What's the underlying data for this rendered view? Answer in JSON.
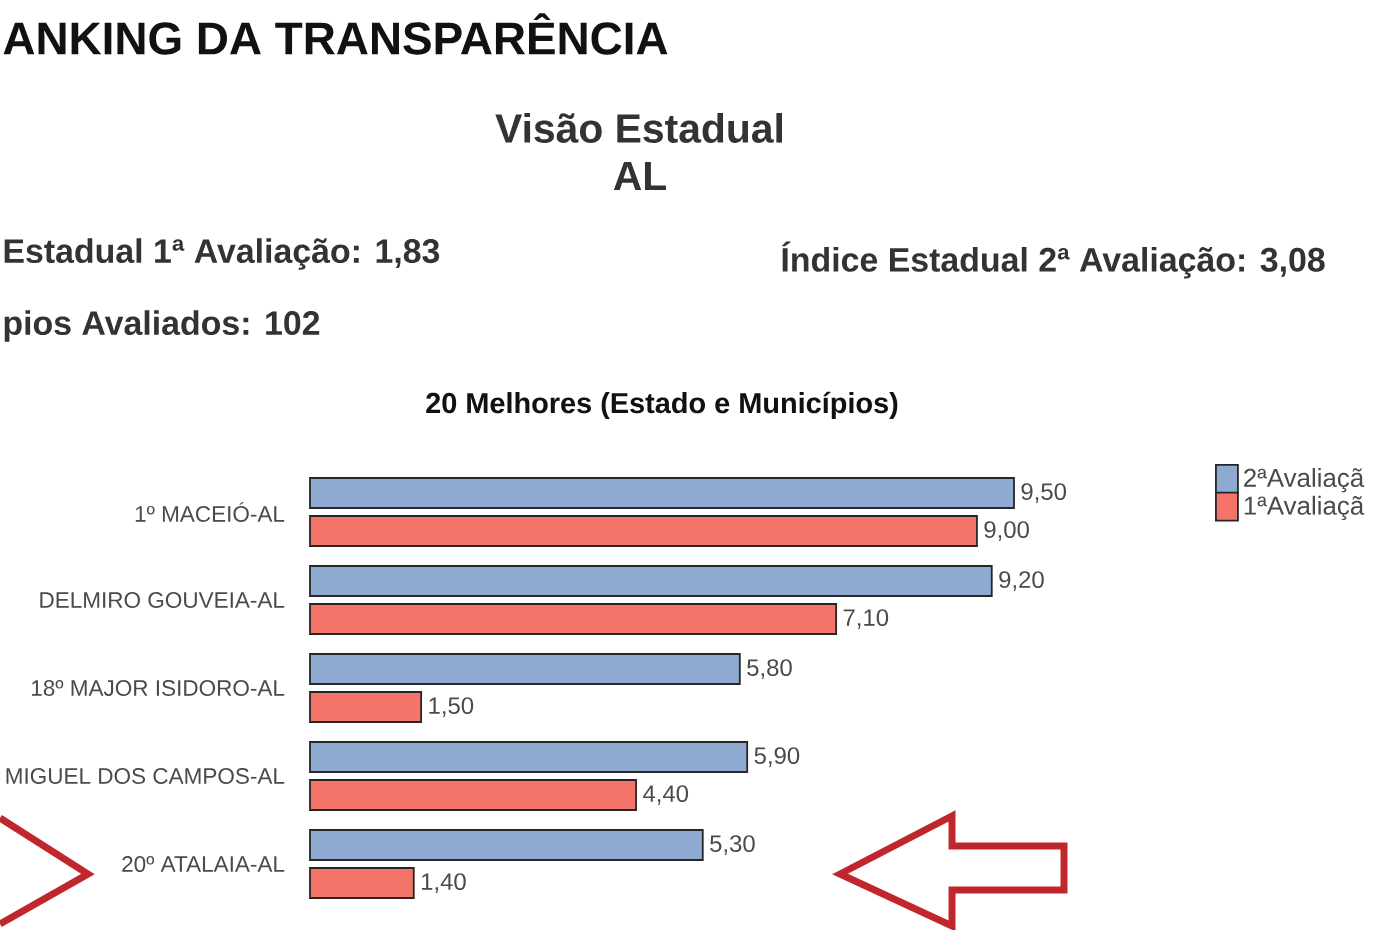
{
  "chart_data": {
    "type": "bar",
    "orientation": "horizontal",
    "title": "20 Melhores (Estado e Municípios)",
    "annotations": [
      "ANKING DA TRANSPARÊNCIA",
      "Visão Estadual",
      "AL",
      "Estadual 1ª Avaliação: 1,83",
      "Índice Estadual 2ª Avaliação: 3,08",
      "pios Avaliados: 102"
    ],
    "categories": [
      "1º MACEIÓ-AL",
      "DELMIRO GOUVEIA-AL",
      "18º MAJOR ISIDORO-AL",
      "MIGUEL DOS CAMPOS-AL",
      "20º ATALAIA-AL"
    ],
    "series": [
      {
        "name": "2ªAvaliaçã",
        "color": "#8eaad0",
        "values": [
          9.5,
          9.2,
          5.8,
          5.9,
          5.3
        ],
        "value_labels": [
          "9,50",
          "9,20",
          "5,80",
          "5,90",
          "5,30"
        ]
      },
      {
        "name": "1ªAvaliaçã",
        "color": "#f4746a",
        "values": [
          9.0,
          7.1,
          1.5,
          4.4,
          1.4
        ],
        "value_labels": [
          "9,00",
          "7,10",
          "1,50",
          "4,40",
          "1,40"
        ]
      }
    ],
    "legend": "top right"
  }
}
